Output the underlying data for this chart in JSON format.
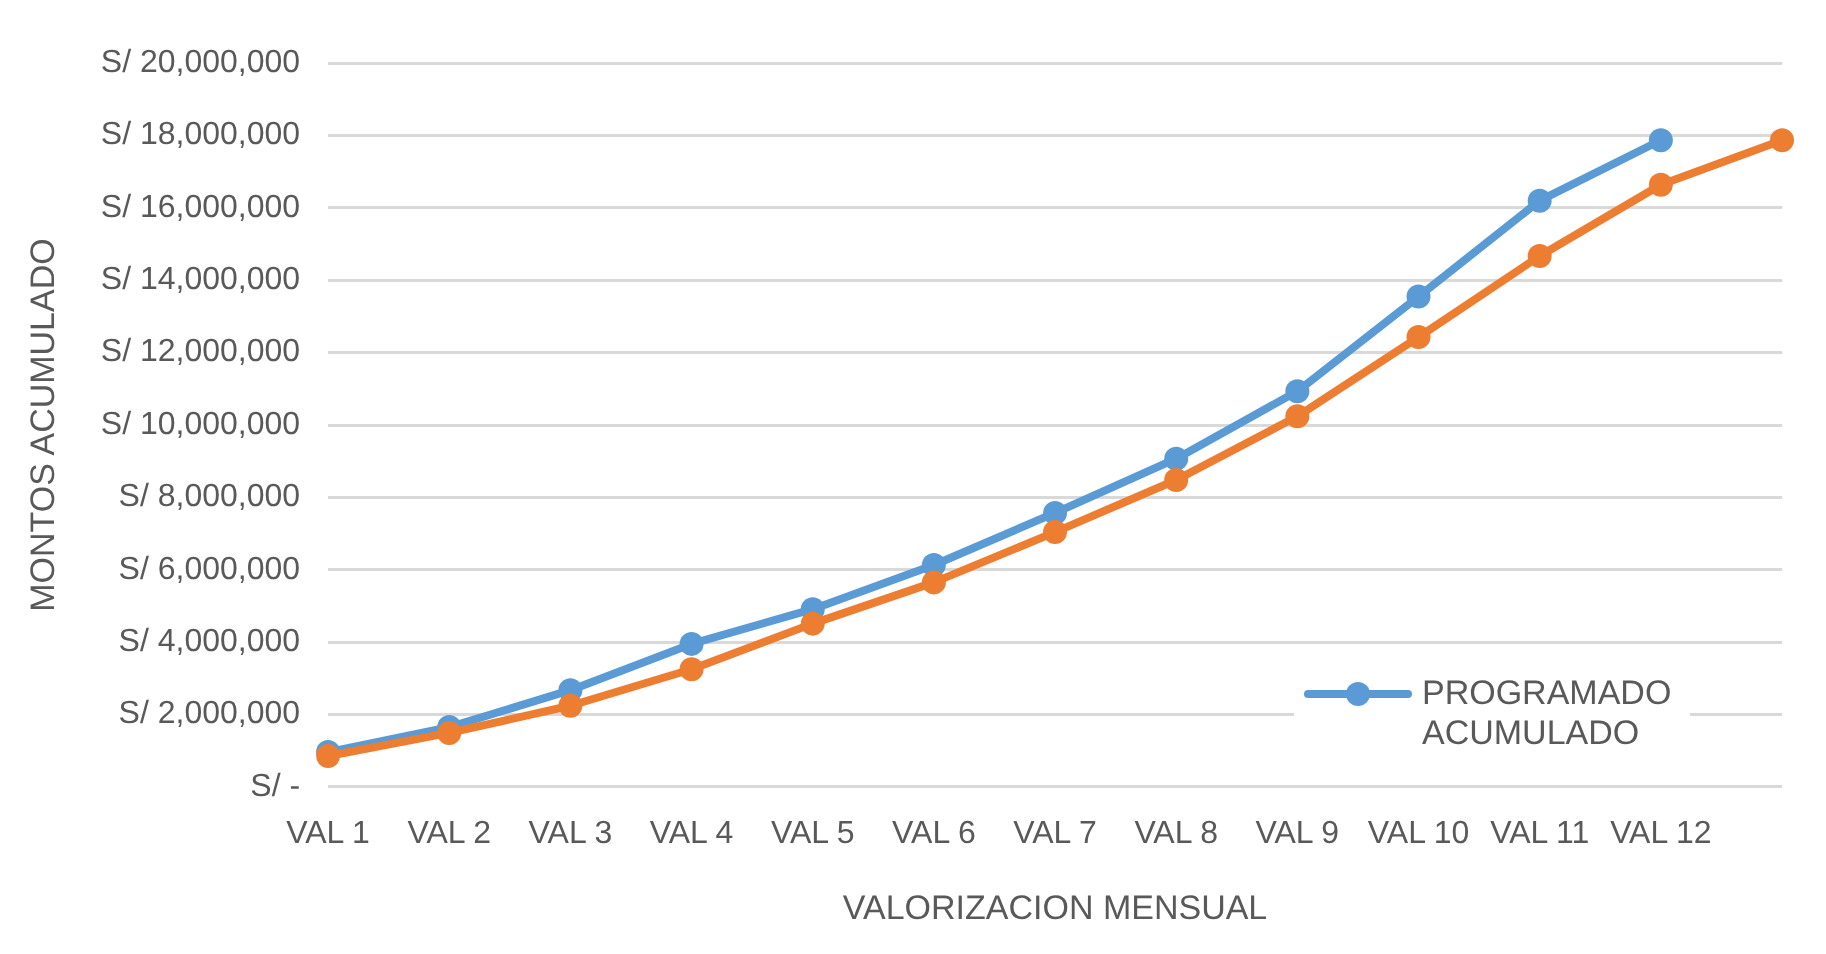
{
  "chart_data": {
    "type": "line",
    "xlabel": "VALORIZACION MENSUAL",
    "ylabel": "MONTOS ACUMULADO",
    "categories": [
      "VAL 1",
      "VAL 2",
      "VAL 3",
      "VAL 4",
      "VAL 5",
      "VAL 6",
      "VAL 7",
      "VAL 8",
      "VAL 9",
      "VAL 10",
      "VAL 11",
      "VAL 12",
      null
    ],
    "series": [
      {
        "name": "PROGRAMADO ACUMULADO",
        "color": "#5b9bd5",
        "values": [
          960000,
          1650000,
          2670000,
          3950000,
          4910000,
          6130000,
          7570000,
          9070000,
          10930000,
          13550000,
          16200000,
          17870000,
          null
        ]
      },
      {
        "color": "#ed7d31",
        "values": [
          850000,
          1490000,
          2240000,
          3250000,
          4510000,
          5650000,
          7040000,
          8480000,
          10240000,
          12430000,
          14670000,
          16640000,
          17870000
        ]
      }
    ],
    "ylim": [
      0,
      20000000
    ],
    "yticks": [
      {
        "value": 0,
        "label": "S/ -"
      },
      {
        "value": 2000000,
        "label": "S/ 2,000,000"
      },
      {
        "value": 4000000,
        "label": "S/ 4,000,000"
      },
      {
        "value": 6000000,
        "label": "S/ 6,000,000"
      },
      {
        "value": 8000000,
        "label": "S/ 8,000,000"
      },
      {
        "value": 10000000,
        "label": "S/ 10,000,000"
      },
      {
        "value": 12000000,
        "label": "S/ 12,000,000"
      },
      {
        "value": 14000000,
        "label": "S/ 14,000,000"
      },
      {
        "value": 16000000,
        "label": "S/ 16,000,000"
      },
      {
        "value": 18000000,
        "label": "S/ 18,000,000"
      },
      {
        "value": 20000000,
        "label": "S/ 20,000,000"
      }
    ],
    "grid": "y",
    "legend": "bottom right",
    "marker": "circle",
    "line_style": "solid"
  }
}
